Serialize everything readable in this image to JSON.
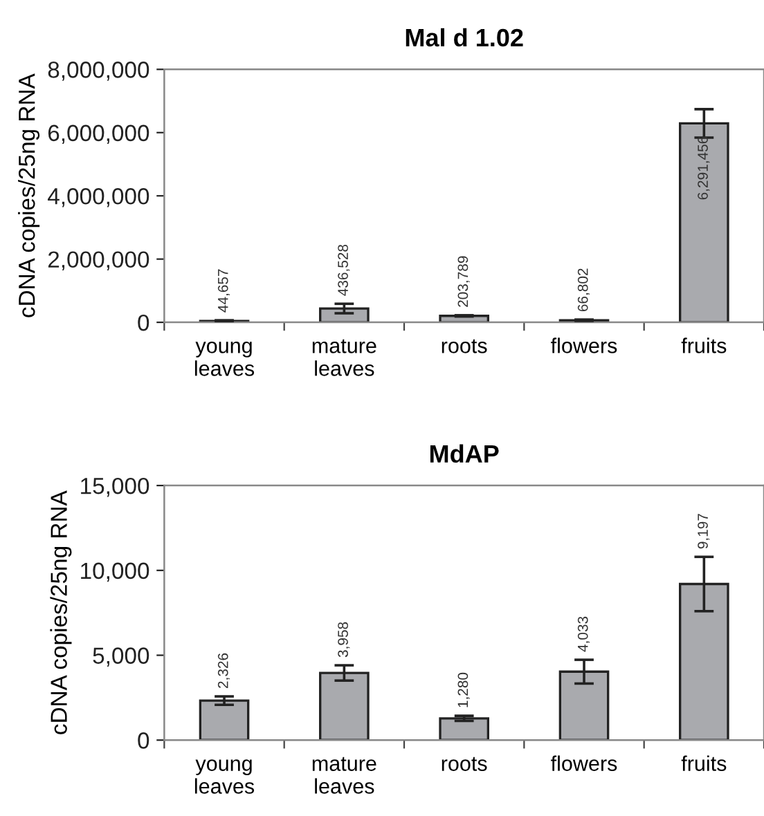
{
  "chart_data": [
    {
      "type": "bar",
      "title": "Mal d 1.02",
      "ylabel": "cDNA copies/25ng RNA",
      "categories": [
        "young leaves",
        "mature leaves",
        "roots",
        "flowers",
        "fruits"
      ],
      "values": [
        44657,
        436528,
        203789,
        66802,
        6291456
      ],
      "value_labels": [
        "44,657",
        "436,528",
        "203,789",
        "66,802",
        "6,291,456"
      ],
      "errors": [
        20000,
        150000,
        20000,
        20000,
        450000
      ],
      "color": "#a9aaae",
      "ylim": [
        0,
        8000000
      ],
      "yticks": [
        {
          "value": 0,
          "label": "0"
        },
        {
          "value": 2000000,
          "label": "2,000,000"
        },
        {
          "value": 4000000,
          "label": "4,000,000"
        },
        {
          "value": 6000000,
          "label": "6,000,000"
        },
        {
          "value": 8000000,
          "label": "8,000,000"
        }
      ],
      "grid": false,
      "legend": false
    },
    {
      "type": "bar",
      "title": "MdAP",
      "ylabel": "cDNA copies/25ng RNA",
      "categories": [
        "young leaves",
        "mature leaves",
        "roots",
        "flowers",
        "fruits"
      ],
      "values": [
        2326,
        3958,
        1280,
        4033,
        9197
      ],
      "value_labels": [
        "2,326",
        "3,958",
        "1,280",
        "4,033",
        "9,197"
      ],
      "errors": [
        250,
        450,
        150,
        700,
        1600
      ],
      "color": "#a9aaae",
      "ylim": [
        0,
        15000
      ],
      "yticks": [
        {
          "value": 0,
          "label": "0"
        },
        {
          "value": 5000,
          "label": "5,000"
        },
        {
          "value": 10000,
          "label": "10,000"
        },
        {
          "value": 15000,
          "label": "15,000"
        }
      ],
      "grid": false,
      "legend": false
    }
  ]
}
